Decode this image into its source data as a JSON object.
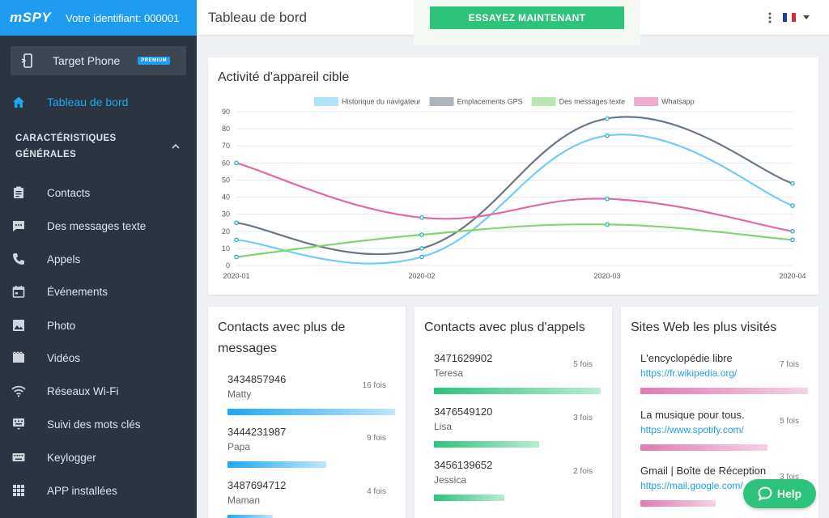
{
  "sidebar": {
    "logo": "mSPY",
    "user_id": "Votre identifiant: 000001",
    "target": {
      "label": "Target Phone",
      "badge": "PREMIUM"
    },
    "dashboard": "Tableau de bord",
    "section_title": "CARACTÉRISTIQUES GÉNÉRALES",
    "items": [
      {
        "label": "Contacts",
        "icon": "clipboard-icon"
      },
      {
        "label": "Des messages texte",
        "icon": "message-icon"
      },
      {
        "label": "Appels",
        "icon": "phone-icon"
      },
      {
        "label": "Événements",
        "icon": "calendar-icon"
      },
      {
        "label": "Photo",
        "icon": "image-icon"
      },
      {
        "label": "Vidéos",
        "icon": "film-icon"
      },
      {
        "label": "Réseaux Wi-Fi",
        "icon": "wifi-icon"
      },
      {
        "label": "Suivi des mots clés",
        "icon": "keyword-icon"
      },
      {
        "label": "Keylogger",
        "icon": "keyboard-icon"
      },
      {
        "label": "APP installées",
        "icon": "apps-grid-icon"
      }
    ]
  },
  "header": {
    "title": "Tableau de bord",
    "cta": "ESSAYEZ MAINTENANT"
  },
  "chart_card": {
    "title": "Activité d'appareil cible"
  },
  "chart_data": {
    "type": "line",
    "title": "Activité d'appareil cible",
    "categories": [
      "2020-01",
      "2020-02",
      "2020-03",
      "2020-04"
    ],
    "ylim": [
      0,
      90
    ],
    "yticks": [
      0,
      10,
      20,
      30,
      40,
      50,
      60,
      70,
      80,
      90
    ],
    "grid": true,
    "legend": "top",
    "series": [
      {
        "name": "Historique du navigateur",
        "color": "#6fcdf6",
        "values": [
          15,
          5,
          76,
          35
        ]
      },
      {
        "name": "Emplacements GPS",
        "color": "#6b7686",
        "values": [
          25,
          10,
          86,
          48
        ]
      },
      {
        "name": "Des messages texte",
        "color": "#7fd66f",
        "values": [
          5,
          18,
          24,
          15
        ]
      },
      {
        "name": "Whatsapp",
        "color": "#e06aa6",
        "values": [
          60,
          28,
          39,
          20
        ]
      }
    ]
  },
  "cards": {
    "messages": {
      "title": "Contacts avec plus de messages",
      "entries": [
        {
          "number": "3434857946",
          "name": "Matty",
          "count": "16 fois",
          "ratio": 1.0
        },
        {
          "number": "3444231987",
          "name": "Papa",
          "count": "9 fois",
          "ratio": 0.59
        },
        {
          "number": "3487694712",
          "name": "Maman",
          "count": "4 fois",
          "ratio": 0.27
        }
      ]
    },
    "calls": {
      "title": "Contacts avec plus d'appels",
      "entries": [
        {
          "number": "3471629902",
          "name": "Teresa",
          "count": "5 fois",
          "ratio": 1.0
        },
        {
          "number": "3476549120",
          "name": "Lisa",
          "count": "3 fois",
          "ratio": 0.63
        },
        {
          "number": "3456139652",
          "name": "Jessica",
          "count": "2 fois",
          "ratio": 0.42
        }
      ]
    },
    "sites": {
      "title": "Sites Web les plus visités",
      "entries": [
        {
          "name": "L'encyclopédie libre",
          "url": "https://fr.wikipedia.org/",
          "count": "7 fois",
          "ratio": 1.0
        },
        {
          "name": "La musique pour tous.",
          "url": "https://www.spotify.com/",
          "count": "5 fois",
          "ratio": 0.76
        },
        {
          "name": "Gmail | Boîte de Réception",
          "url": "https://mail.google.com/",
          "count": "3 fois",
          "ratio": 0.45
        }
      ]
    }
  },
  "help": {
    "label": "Help"
  }
}
